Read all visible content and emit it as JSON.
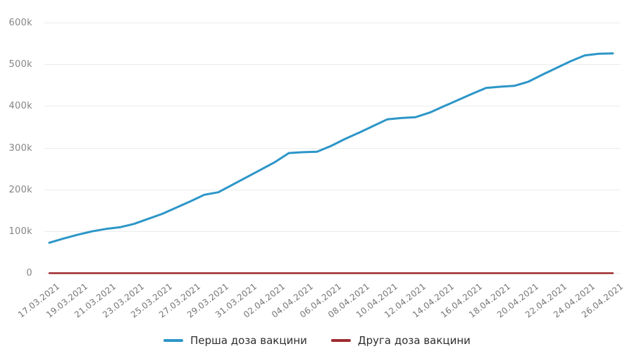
{
  "chart_data": {
    "type": "line",
    "title": "",
    "xlabel": "",
    "ylabel": "",
    "grid": "horizontal",
    "legend_position": "bottom-center",
    "ylim": [
      0,
      600000
    ],
    "y_ticks": [
      "600k",
      "500k",
      "400k",
      "300k",
      "200k",
      "100k",
      "0"
    ],
    "y_tick_values": [
      600000,
      500000,
      400000,
      300000,
      200000,
      100000,
      0
    ],
    "x": [
      "17.03.2021",
      "18.03.2021",
      "19.03.2021",
      "20.03.2021",
      "21.03.2021",
      "22.03.2021",
      "23.03.2021",
      "24.03.2021",
      "25.03.2021",
      "26.03.2021",
      "27.03.2021",
      "28.03.2021",
      "29.03.2021",
      "30.03.2021",
      "31.03.2021",
      "01.04.2021",
      "02.04.2021",
      "03.04.2021",
      "04.04.2021",
      "05.04.2021",
      "06.04.2021",
      "07.04.2021",
      "08.04.2021",
      "09.04.2021",
      "10.04.2021",
      "11.04.2021",
      "12.04.2021",
      "13.04.2021",
      "14.04.2021",
      "15.04.2021",
      "16.04.2021",
      "17.04.2021",
      "18.04.2021",
      "19.04.2021",
      "20.04.2021",
      "21.04.2021",
      "22.04.2021",
      "23.04.2021",
      "24.04.2021",
      "25.04.2021",
      "26.04.2021"
    ],
    "x_labels_shown": [
      "17.03.2021",
      "19.03.2021",
      "21.03.2021",
      "23.03.2021",
      "25.03.2021",
      "27.03.2021",
      "29.03.2021",
      "31.03.2021",
      "02.04.2021",
      "04.04.2021",
      "06.04.2021",
      "08.04.2021",
      "10.04.2021",
      "12.04.2021",
      "14.04.2021",
      "16.04.2021",
      "18.04.2021",
      "20.04.2021",
      "22.04.2021",
      "24.04.2021",
      "26.04.2021"
    ],
    "series": [
      {
        "name": "Перша доза вакцини",
        "color": "#2D96C8",
        "values": [
          73000,
          83000,
          92000,
          100000,
          106000,
          110000,
          118000,
          130000,
          142000,
          157000,
          172000,
          188000,
          194000,
          212000,
          230000,
          248000,
          266000,
          288000,
          290000,
          291000,
          305000,
          322000,
          337000,
          353000,
          369000,
          372000,
          374000,
          385000,
          400000,
          415000,
          430000,
          444000,
          447000,
          449000,
          459000,
          476000,
          492000,
          508000,
          522000,
          526000,
          527000
        ]
      },
      {
        "name": "Друга доза вакцини",
        "color": "#9E2B2E",
        "values": [
          0,
          0,
          0,
          0,
          0,
          0,
          0,
          0,
          0,
          0,
          0,
          0,
          0,
          0,
          0,
          0,
          0,
          0,
          0,
          0,
          0,
          0,
          0,
          0,
          0,
          0,
          0,
          0,
          0,
          0,
          0,
          0,
          0,
          0,
          0,
          0,
          0,
          0,
          0,
          0,
          0
        ]
      }
    ]
  },
  "colors": {
    "background": "#ffffff",
    "gridline": "#ececec",
    "y_tick_text": "#858585",
    "x_tick_text": "#767676",
    "legend_text": "#2e2e2e",
    "first_dose_line": "#2D96C8",
    "second_dose_line": "#9E2B2E"
  }
}
